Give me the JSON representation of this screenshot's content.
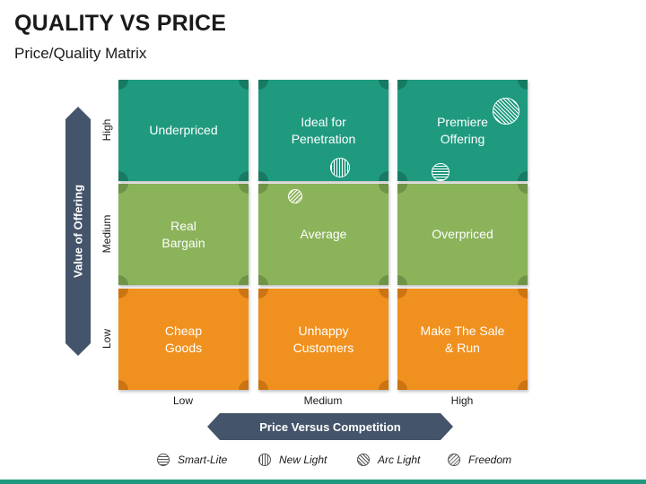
{
  "title": "QUALITY VS PRICE",
  "subtitle": "Price/Quality Matrix",
  "y_axis": {
    "label": "Value of Offering",
    "levels": [
      "High",
      "Medium",
      "Low"
    ]
  },
  "x_axis": {
    "label": "Price Versus Competition",
    "levels": [
      "Low",
      "Medium",
      "High"
    ]
  },
  "colors": {
    "high_row": "#1f9a7f",
    "high_corner": "#177b63",
    "medium_row": "#8bb35a",
    "medium_corner": "#6f9447",
    "low_row": "#f0911f",
    "low_corner": "#cc7412",
    "axis_bar": "#44546a"
  },
  "matrix": [
    {
      "row": "High",
      "cells": [
        {
          "label": "Underpriced"
        },
        {
          "label": "Ideal for\nPenetration"
        },
        {
          "label": "Premiere\nOffering"
        }
      ]
    },
    {
      "row": "Medium",
      "cells": [
        {
          "label": "Real\nBargain"
        },
        {
          "label": "Average"
        },
        {
          "label": "Overpriced"
        }
      ]
    },
    {
      "row": "Low",
      "cells": [
        {
          "label": "Cheap\nGoods"
        },
        {
          "label": "Unhappy\nCustomers"
        },
        {
          "label": "Make The Sale\n& Run"
        }
      ]
    }
  ],
  "legend": [
    {
      "label": "Smart-Lite",
      "icon": "horizontal-stripes-icon"
    },
    {
      "label": "New Light",
      "icon": "vertical-stripes-icon"
    },
    {
      "label": "Arc Light",
      "icon": "diagonal-stripes-icon"
    },
    {
      "label": "Freedom",
      "icon": "dotted-circle-icon"
    }
  ]
}
